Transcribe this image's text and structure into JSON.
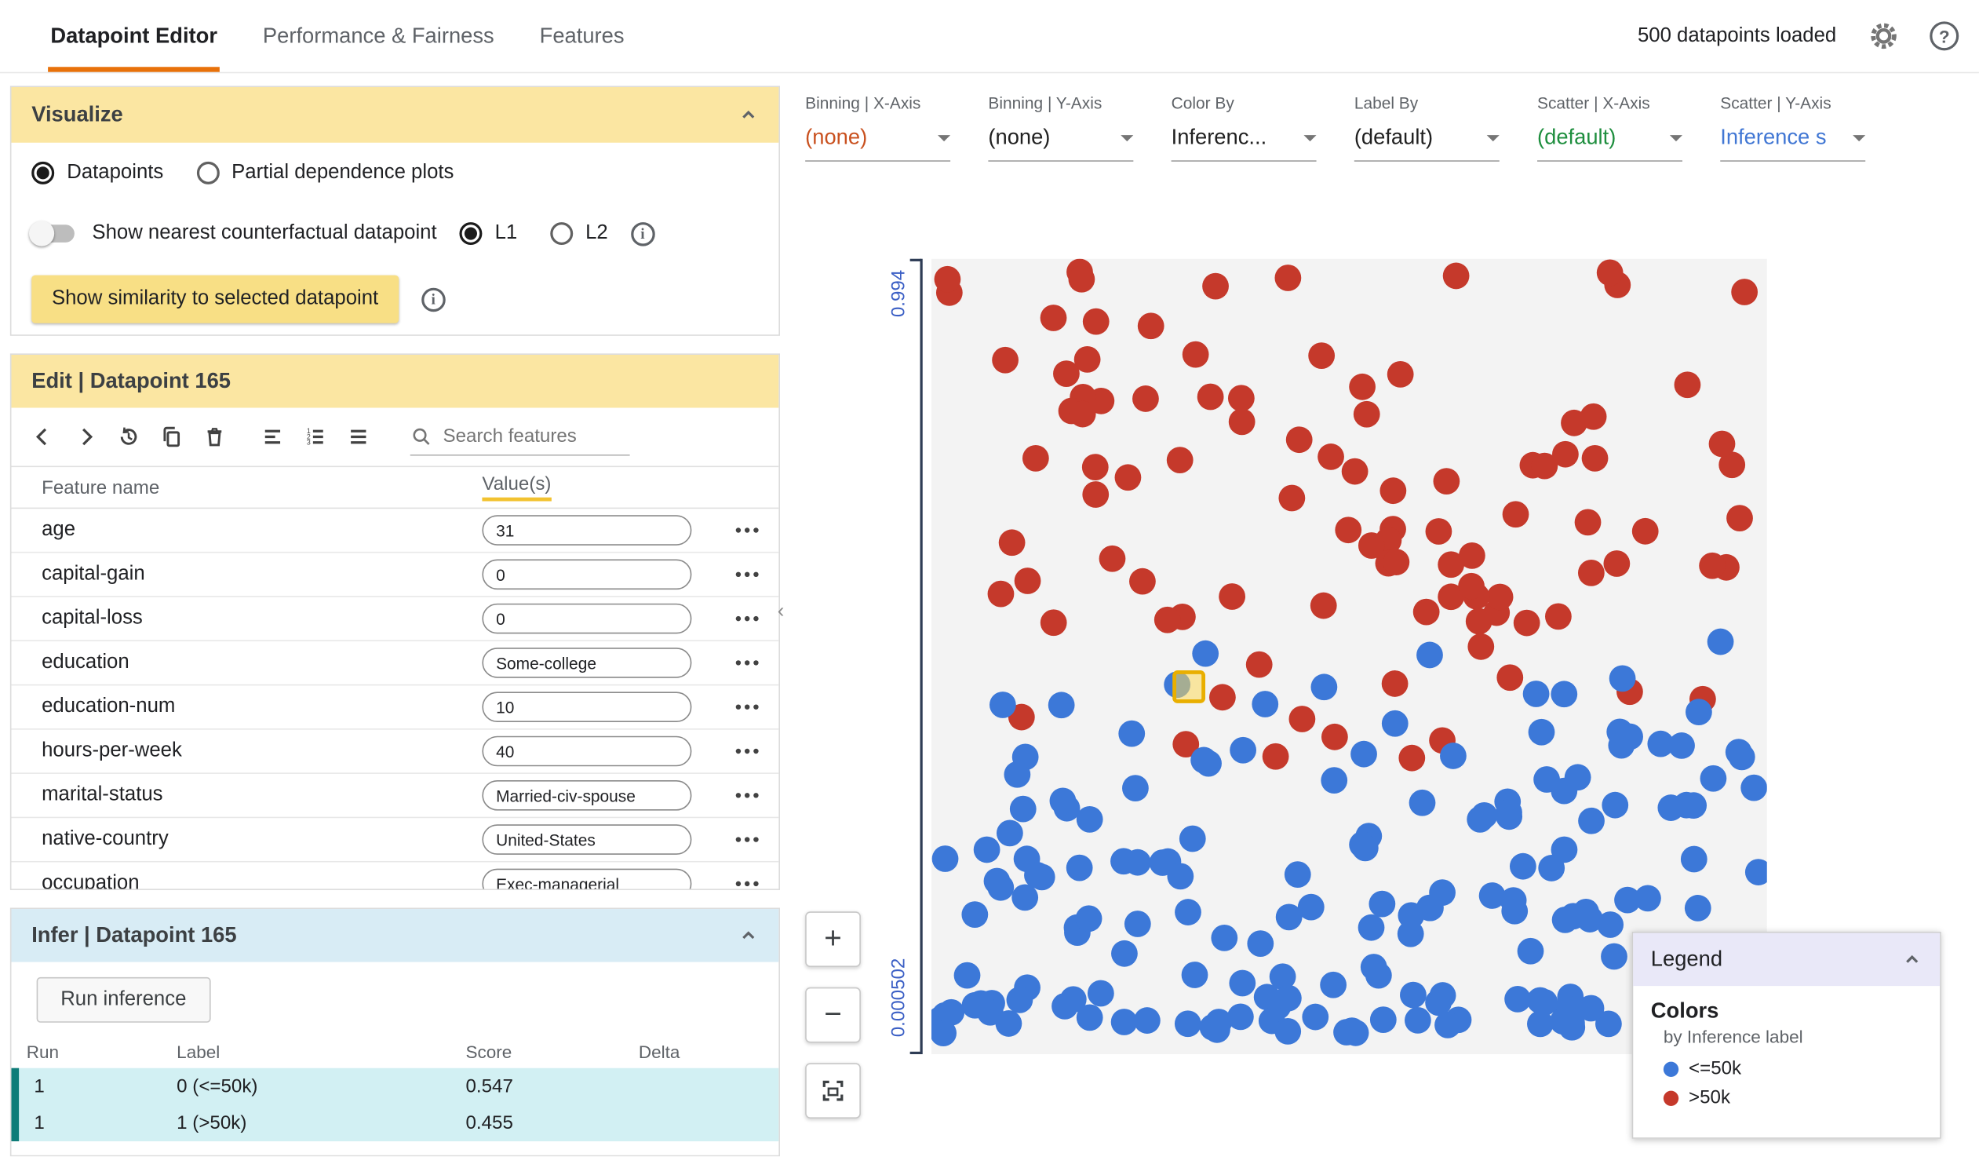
{
  "header": {
    "tabs": [
      {
        "label": "Datapoint Editor",
        "active": true
      },
      {
        "label": "Performance & Fairness",
        "active": false
      },
      {
        "label": "Features",
        "active": false
      }
    ],
    "status": "500 datapoints loaded"
  },
  "visualize": {
    "title": "Visualize",
    "datapoints_radio": "Datapoints",
    "pdp_radio": "Partial dependence plots",
    "counterfactual_toggle_label": "Show nearest counterfactual datapoint",
    "l1_label": "L1",
    "l2_label": "L2",
    "similarity_button": "Show similarity to selected datapoint"
  },
  "edit": {
    "title": "Edit | Datapoint 165",
    "search_placeholder": "Search features",
    "columns": [
      "Feature name",
      "Value(s)"
    ],
    "features": [
      {
        "name": "age",
        "value": "31"
      },
      {
        "name": "capital-gain",
        "value": "0"
      },
      {
        "name": "capital-loss",
        "value": "0"
      },
      {
        "name": "education",
        "value": "Some-college"
      },
      {
        "name": "education-num",
        "value": "10"
      },
      {
        "name": "hours-per-week",
        "value": "40"
      },
      {
        "name": "marital-status",
        "value": "Married-civ-spouse"
      },
      {
        "name": "native-country",
        "value": "United-States"
      },
      {
        "name": "occupation",
        "value": "Exec-managerial"
      }
    ]
  },
  "infer": {
    "title": "Infer | Datapoint 165",
    "run_button": "Run inference",
    "columns": [
      "Run",
      "Label",
      "Score",
      "Delta"
    ],
    "rows": [
      {
        "run": "1",
        "label": "0 (<=50k)",
        "score": "0.547",
        "delta": ""
      },
      {
        "run": "1",
        "label": "1 (>50k)",
        "score": "0.455",
        "delta": ""
      }
    ]
  },
  "controls": [
    {
      "label": "Binning | X-Axis",
      "value": "(none)",
      "color": "#c9511f"
    },
    {
      "label": "Binning | Y-Axis",
      "value": "(none)",
      "color": "#212121"
    },
    {
      "label": "Color By",
      "value": "Inferenc...",
      "color": "#212121"
    },
    {
      "label": "Label By",
      "value": "(default)",
      "color": "#212121"
    },
    {
      "label": "Scatter | X-Axis",
      "value": "(default)",
      "color": "#1e8e3e"
    },
    {
      "label": "Scatter | Y-Axis",
      "value": "Inference s",
      "color": "#4177d4"
    }
  ],
  "plot": {
    "y_axis_top_label": "0.994",
    "y_axis_bottom_label": "0.000502",
    "colors": {
      "blue": "#3c78d8",
      "red": "#c5392b",
      "selected": "#e9af00"
    },
    "seed": 7,
    "point_radius": 10.5,
    "clusters": [
      {
        "color": "red",
        "count": 85,
        "x_min": 1,
        "x_max": 99,
        "y_min": 1.5,
        "y_max": 46
      },
      {
        "color": "red",
        "count": 14,
        "x_min": 2,
        "x_max": 99,
        "y_min": 46,
        "y_max": 63
      },
      {
        "color": "blue",
        "count": 16,
        "x_min": 2,
        "x_max": 99,
        "y_min": 46,
        "y_max": 60
      },
      {
        "color": "blue",
        "count": 100,
        "x_min": 1,
        "x_max": 99,
        "y_min": 60,
        "y_max": 92
      },
      {
        "color": "blue",
        "count": 60,
        "x_min": 1,
        "x_max": 99,
        "y_min": 91,
        "y_max": 97.5
      }
    ]
  },
  "legend": {
    "title": "Legend",
    "section": "Colors",
    "subtitle": "by Inference label",
    "items": [
      {
        "label": "<=50k",
        "color": "#3c78d8"
      },
      {
        "label": ">50k",
        "color": "#c5392b"
      }
    ]
  },
  "zoom": {
    "zoom_in": "+",
    "zoom_out": "−"
  }
}
